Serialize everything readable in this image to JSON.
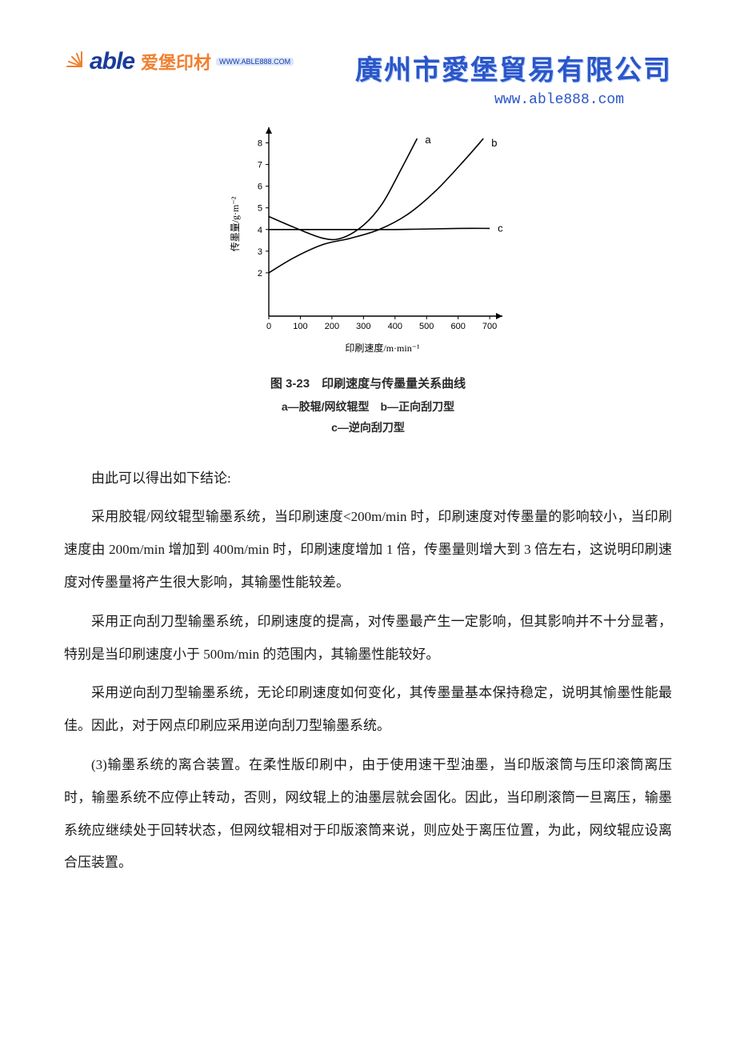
{
  "header": {
    "logo_able": "able",
    "logo_cn": "爱堡印材",
    "logo_sub": "WWW.ABLE888.COM",
    "company_name": "廣州市愛堡貿易有限公司",
    "company_url": "www.able888.com"
  },
  "chart": {
    "type": "line",
    "x_label": "印刷速度/m·min⁻¹",
    "y_label": "传墨量/g·m⁻²",
    "xlim": [
      0,
      720
    ],
    "ylim": [
      0,
      8.5
    ],
    "x_ticks": [
      0,
      100,
      200,
      300,
      400,
      500,
      600,
      700
    ],
    "y_ticks": [
      0,
      2,
      3,
      4,
      5,
      6,
      7,
      8
    ],
    "axis_color": "#000000",
    "line_color": "#000000",
    "line_width": 1.6,
    "label_fontsize": 12,
    "tick_fontsize": 11,
    "series": {
      "a": {
        "label": "a",
        "points": [
          [
            0,
            4.6
          ],
          [
            80,
            4.1
          ],
          [
            170,
            3.6
          ],
          [
            230,
            3.6
          ],
          [
            300,
            4.2
          ],
          [
            360,
            5.2
          ],
          [
            420,
            6.8
          ],
          [
            470,
            8.2
          ]
        ]
      },
      "b": {
        "label": "b",
        "points": [
          [
            0,
            2.0
          ],
          [
            80,
            2.7
          ],
          [
            170,
            3.3
          ],
          [
            260,
            3.6
          ],
          [
            350,
            4.0
          ],
          [
            440,
            4.7
          ],
          [
            530,
            5.8
          ],
          [
            620,
            7.2
          ],
          [
            680,
            8.2
          ]
        ]
      },
      "c": {
        "label": "c",
        "points": [
          [
            0,
            4.0
          ],
          [
            200,
            4.0
          ],
          [
            400,
            4.0
          ],
          [
            600,
            4.05
          ],
          [
            700,
            4.05
          ]
        ]
      }
    },
    "caption_title": "图 3-23　印刷速度与传墨量关系曲线",
    "caption_legend1": "a—胶辊/网纹辊型　b—正向刮刀型",
    "caption_legend2": "c—逆向刮刀型"
  },
  "paragraphs": {
    "p0": "由此可以得出如下结论:",
    "p1": "采用胶辊/网纹辊型输墨系统，当印刷速度<200m/min 时，印刷速度对传墨量的影响较小，当印刷速度由 200m/min 增加到 400m/min 时，印刷速度增加 1 倍，传墨量则增大到 3 倍左右，这说明印刷速度对传墨量将产生很大影响，其输墨性能较差。",
    "p2": "采用正向刮刀型输墨系统，印刷速度的提高，对传墨最产生一定影响，但其影响并不十分显著，特别是当印刷速度小于 500m/min 的范围内，其输墨性能较好。",
    "p3": "采用逆向刮刀型输墨系统，无论印刷速度如何变化，其传墨量基本保持稳定，说明其愉墨性能最佳。因此，对于网点印刷应采用逆向刮刀型输墨系统。",
    "p4": "(3)输墨系统的离合装置。在柔性版印刷中，由于使用速干型油墨，当印版滚筒与压印滚筒离压时，输墨系统不应停止转动，否则，网纹辊上的油墨层就会固化。因此，当印刷滚筒一旦离压，输墨系统应继续处于回转状态，但网纹辊相对于印版滚筒来说，则应处于离压位置，为此，网纹辊应设离合压装置。"
  }
}
